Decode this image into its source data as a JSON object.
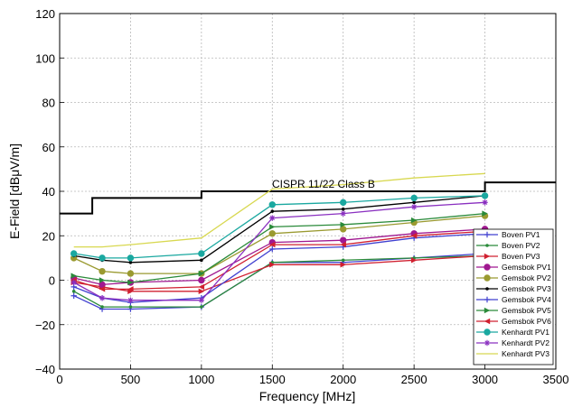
{
  "chart_data": {
    "type": "line",
    "title": "",
    "xlabel": "Frequency [MHz]",
    "ylabel": "E-Field [dBμV/m]",
    "xlim": [
      0,
      3500
    ],
    "ylim": [
      -40,
      120
    ],
    "xticks": [
      0,
      500,
      1000,
      1500,
      2000,
      2500,
      3000,
      3500
    ],
    "yticks": [
      -40,
      -20,
      0,
      20,
      40,
      60,
      80,
      100,
      120
    ],
    "grid": true,
    "legend_position": "lower-right",
    "limit_line": {
      "label": "CISPR 11/22 Class B",
      "color": "#000000",
      "points": [
        [
          0,
          30
        ],
        [
          230,
          30
        ],
        [
          230,
          37
        ],
        [
          1000,
          37
        ],
        [
          1000,
          40
        ],
        [
          3000,
          40
        ],
        [
          3000,
          44
        ],
        [
          3500,
          44
        ]
      ]
    },
    "x": [
      100,
      300,
      500,
      1000,
      1500,
      2000,
      2500,
      3000
    ],
    "series": [
      {
        "name": "Boven PV1",
        "color": "#4040d0",
        "marker": "plus",
        "values": [
          -7,
          -13,
          -13,
          -12,
          8,
          8,
          10,
          12
        ]
      },
      {
        "name": "Boven PV2",
        "color": "#2a8a3a",
        "marker": "dot",
        "values": [
          -5,
          -12,
          -12,
          -12,
          8,
          9,
          10,
          11
        ]
      },
      {
        "name": "Boven PV3",
        "color": "#d02030",
        "marker": "tri-right",
        "values": [
          -1,
          -3,
          -5,
          -5,
          7,
          7,
          9,
          11
        ]
      },
      {
        "name": "Gemsbok PV1",
        "color": "#a01890",
        "marker": "circle",
        "values": [
          1,
          -2,
          -1,
          0,
          17,
          18,
          21,
          23
        ]
      },
      {
        "name": "Gemsbok PV2",
        "color": "#9a9a30",
        "marker": "circle",
        "values": [
          10,
          4,
          3,
          3,
          21,
          23,
          26,
          29
        ]
      },
      {
        "name": "Gemsbok PV3",
        "color": "#000000",
        "marker": "dot",
        "values": [
          11,
          9,
          8,
          9,
          31,
          32,
          35,
          38
        ]
      },
      {
        "name": "Gemsbok PV4",
        "color": "#4040d0",
        "marker": "plus",
        "values": [
          -3,
          -8,
          -10,
          -8,
          14,
          15,
          19,
          21
        ]
      },
      {
        "name": "Gemsbok PV5",
        "color": "#2a8a3a",
        "marker": "tri-right",
        "values": [
          2,
          0,
          -1,
          3,
          24,
          25,
          27,
          30
        ]
      },
      {
        "name": "Gemsbok PV6",
        "color": "#d02030",
        "marker": "tri-left",
        "values": [
          0,
          -4,
          -4,
          -3,
          16,
          16,
          20,
          22
        ]
      },
      {
        "name": "Kenhardt PV1",
        "color": "#1aa8a0",
        "marker": "circle",
        "values": [
          12,
          10,
          10,
          12,
          34,
          35,
          37,
          38
        ]
      },
      {
        "name": "Kenhardt PV2",
        "color": "#8a30c0",
        "marker": "star",
        "values": [
          -1,
          -8,
          -9,
          -9,
          28,
          30,
          33,
          35
        ]
      },
      {
        "name": "Kenhardt PV3",
        "color": "#d8d850",
        "marker": "none",
        "values": [
          15,
          15,
          16,
          19,
          41,
          43,
          46,
          48
        ]
      }
    ]
  }
}
